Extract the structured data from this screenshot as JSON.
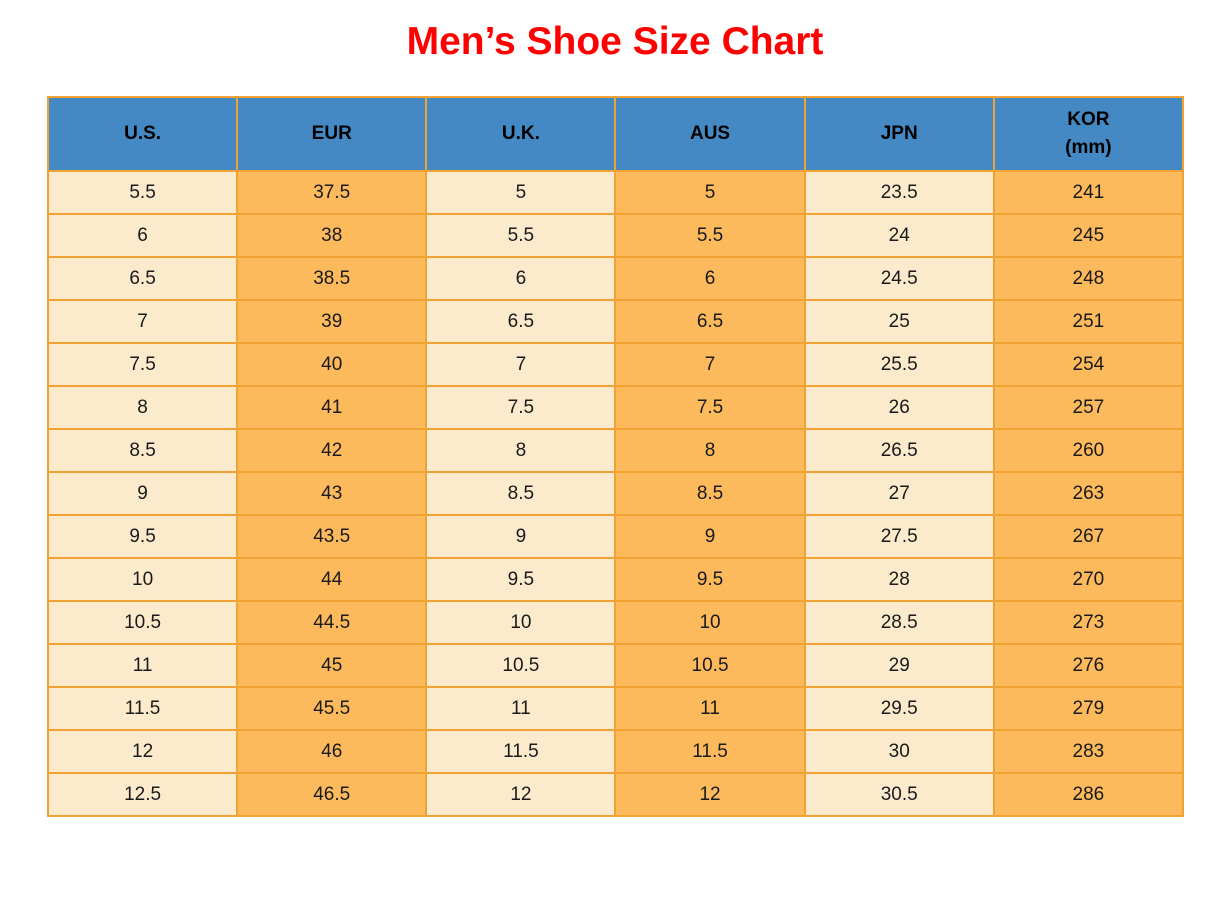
{
  "title": "Men’s Shoe Size Chart",
  "colors": {
    "title_red": "#fe0000",
    "header_blue": "#4589c4",
    "col_light": "#fceacd",
    "col_orange": "#fcba5c",
    "border_orange": "#f0a233",
    "text": "#1a1a1a"
  },
  "chart_data": {
    "type": "table",
    "title": "Men’s Shoe Size Chart",
    "columns": [
      "U.S.",
      "EUR",
      "U.K.",
      "AUS",
      "JPN",
      "KOR\n(mm)"
    ],
    "rows": [
      [
        "5.5",
        "37.5",
        "5",
        "5",
        "23.5",
        "241"
      ],
      [
        "6",
        "38",
        "5.5",
        "5.5",
        "24",
        "245"
      ],
      [
        "6.5",
        "38.5",
        "6",
        "6",
        "24.5",
        "248"
      ],
      [
        "7",
        "39",
        "6.5",
        "6.5",
        "25",
        "251"
      ],
      [
        "7.5",
        "40",
        "7",
        "7",
        "25.5",
        "254"
      ],
      [
        "8",
        "41",
        "7.5",
        "7.5",
        "26",
        "257"
      ],
      [
        "8.5",
        "42",
        "8",
        "8",
        "26.5",
        "260"
      ],
      [
        "9",
        "43",
        "8.5",
        "8.5",
        "27",
        "263"
      ],
      [
        "9.5",
        "43.5",
        "9",
        "9",
        "27.5",
        "267"
      ],
      [
        "10",
        "44",
        "9.5",
        "9.5",
        "28",
        "270"
      ],
      [
        "10.5",
        "44.5",
        "10",
        "10",
        "28.5",
        "273"
      ],
      [
        "11",
        "45",
        "10.5",
        "10.5",
        "29",
        "276"
      ],
      [
        "11.5",
        "45.5",
        "11",
        "11",
        "29.5",
        "279"
      ],
      [
        "12",
        "46",
        "11.5",
        "11.5",
        "30",
        "283"
      ],
      [
        "12.5",
        "46.5",
        "12",
        "12",
        "30.5",
        "286"
      ]
    ]
  }
}
